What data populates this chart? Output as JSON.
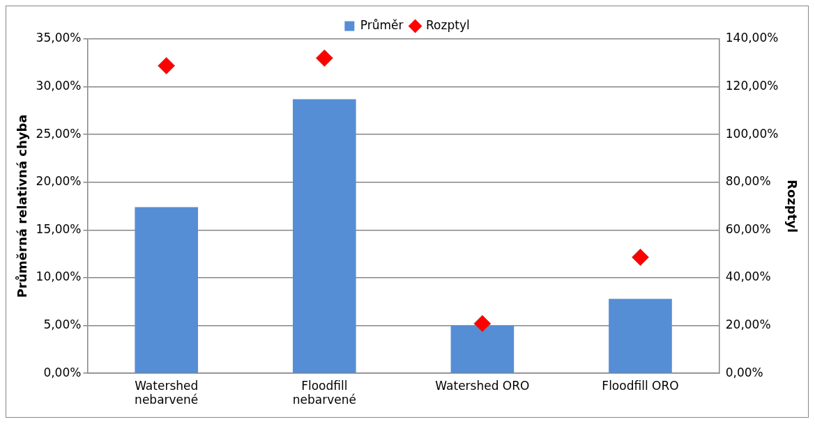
{
  "chart_data": {
    "type": "bar",
    "categories": [
      "Watershed nebarvené",
      "Floodfill nebarvené",
      "Watershed ORO",
      "Floodfill ORO"
    ],
    "ylabel": "Průměrná relativná chyba",
    "y2label": "Rozptyl",
    "series": [
      {
        "name": "Průměr",
        "color": "#558ed5",
        "values": [
          17.4,
          28.7,
          5.0,
          7.8
        ]
      },
      {
        "name": "Rozptyl",
        "type": "scatter",
        "axis": "y2",
        "color": "#ff0000",
        "values": [
          128.8,
          132.0,
          20.8,
          48.6
        ]
      }
    ],
    "ylim": [
      0,
      35
    ],
    "yticks": [
      {
        "value": 0,
        "label": "0,00%"
      },
      {
        "value": 5,
        "label": "5,00%"
      },
      {
        "value": 10,
        "label": "10,00%"
      },
      {
        "value": 15,
        "label": "15,00%"
      },
      {
        "value": 20,
        "label": "20,00%"
      },
      {
        "value": 25,
        "label": "25,00%"
      },
      {
        "value": 30,
        "label": "30,00%"
      },
      {
        "value": 35,
        "label": "35,00%"
      }
    ],
    "y2lim": [
      0,
      140
    ],
    "y2ticks": [
      {
        "value": 0,
        "label": "0,00%"
      },
      {
        "value": 20,
        "label": "20,00%"
      },
      {
        "value": 40,
        "label": "40,00%"
      },
      {
        "value": 60,
        "label": "60,00%"
      },
      {
        "value": 80,
        "label": "80,00%"
      },
      {
        "value": 100,
        "label": "100,00%"
      },
      {
        "value": 120,
        "label": "120,00%"
      },
      {
        "value": 140,
        "label": "140,00%"
      }
    ],
    "grid": "y",
    "legend": "top",
    "marker": "diamond"
  }
}
